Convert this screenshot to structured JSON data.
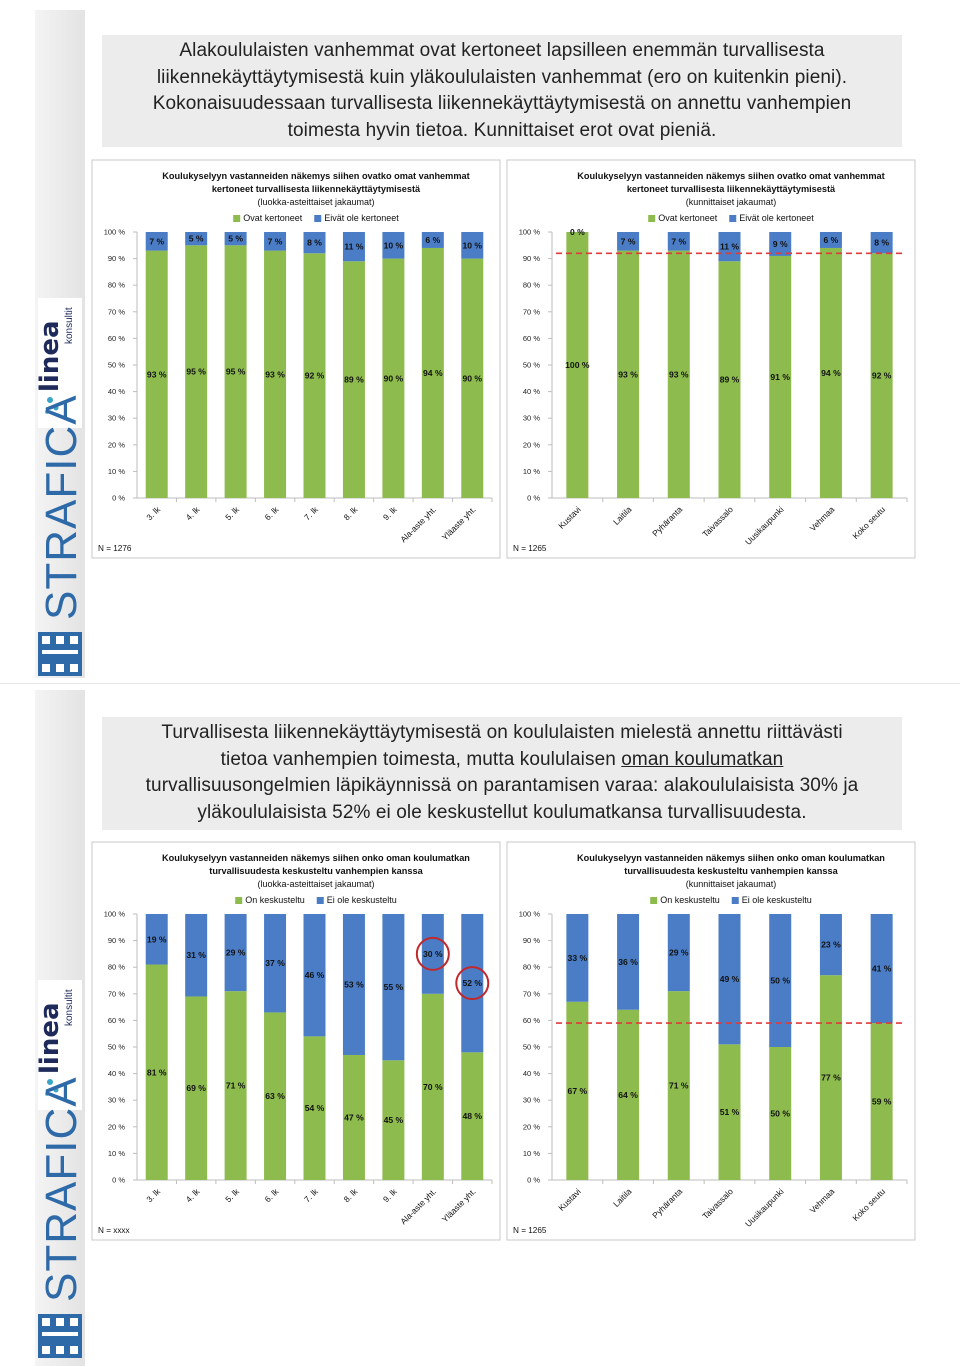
{
  "brand": {
    "name": "STRAFICA",
    "logo_word": "linea",
    "logo_sub": "konsultit"
  },
  "slides": [
    {
      "heading": [
        [
          {
            "text": "Alakoululaisten vanhemmat ovat kertoneet lapsilleen enemmän turvallisesta"
          }
        ],
        [
          {
            "text": "liikennekäyttäytymisestä kuin yläkoululaisten vanhemmat (ero on kuitenkin pieni)."
          }
        ],
        [
          {
            "text": "Kokonaisuudessaan turvallisesta liikennekäyttäytymisestä on annettu vanhempien"
          }
        ],
        [
          {
            "text": "toimesta hyvin tietoa. Kunnittaiset erot ovat pieniä."
          }
        ]
      ]
    },
    {
      "heading": [
        [
          {
            "text": "Turvallisesta liikennekäyttäytymisestä on koululaisten mielestä annettu riittävästi"
          }
        ],
        [
          {
            "text": "tietoa vanhempien toimesta, mutta koululaisen"
          },
          {
            "text": "oman koulumatkan",
            "underline": true
          }
        ],
        [
          {
            "text": "turvallisuusongelmien läpikäynnissä on parantamisen varaa: alakoululaisista 30% ja"
          }
        ],
        [
          {
            "text": "yläkoululaisista 52% ei ole keskustellut koulumatkansa turvallisuudesta."
          }
        ]
      ]
    }
  ],
  "chart_data": [
    {
      "type": "stacked_bar",
      "title": [
        "Koulukyselyyn vastanneiden näkemys siihen ovatko omat vanhemmat",
        "kertoneet turvallisesta liikennekäyttäytymisestä"
      ],
      "subtitle": "(luokka-asteittaiset jakaumat)",
      "note": "N = 1276",
      "categories": [
        "3. lk",
        "4. lk",
        "5. lk",
        "6. lk",
        "7. lk",
        "8. lk",
        "9. lk",
        "Ala-aste yht.",
        "Yläaste yht."
      ],
      "series": [
        {
          "name": "Ovat kertoneet",
          "color": "#8dbb4e",
          "values": [
            93,
            95,
            95,
            93,
            92,
            89,
            90,
            94,
            90
          ],
          "value_labels": [
            "93 %",
            "95 %",
            "95 %",
            "93 %",
            "92 %",
            "89 %",
            "90 %",
            "94 %",
            "90 %"
          ]
        },
        {
          "name": "Eivät ole kertoneet",
          "color": "#4a7dc6",
          "values": [
            7,
            5,
            5,
            7,
            8,
            11,
            10,
            6,
            10
          ],
          "value_labels": [
            "7 %",
            "5 %",
            "5 %",
            "7 %",
            "8 %",
            "11 %",
            "10 %",
            "6 %",
            "10 %"
          ]
        }
      ],
      "ylim": [
        0,
        100
      ],
      "yticks": [
        {
          "value": 0,
          "label": "0 %"
        },
        {
          "value": 10,
          "label": "10 %"
        },
        {
          "value": 20,
          "label": "20 %"
        },
        {
          "value": 30,
          "label": "30 %"
        },
        {
          "value": 40,
          "label": "40 %"
        },
        {
          "value": 50,
          "label": "50 %"
        },
        {
          "value": 60,
          "label": "60 %"
        },
        {
          "value": 70,
          "label": "70 %"
        },
        {
          "value": 80,
          "label": "80 %"
        },
        {
          "value": 90,
          "label": "90 %"
        },
        {
          "value": 100,
          "label": "100 %"
        }
      ],
      "grid": false
    },
    {
      "type": "stacked_bar",
      "title": [
        "Koulukyselyyn vastanneiden näkemys siihen ovatko omat vanhemmat",
        "kertoneet turvallisesta liikennekäyttäytymisestä"
      ],
      "subtitle": "(kunnittaiset jakaumat)",
      "note": "N = 1265",
      "categories": [
        "Kustavi",
        "Laitila",
        "Pyhäranta",
        "Taivassalo",
        "Uusikaupunki",
        "Vehmaa",
        "Koko seutu"
      ],
      "series": [
        {
          "name": "Ovat kertoneet",
          "color": "#8dbb4e",
          "values": [
            100,
            93,
            93,
            89,
            91,
            94,
            92
          ],
          "value_labels": [
            "100 %",
            "93 %",
            "93 %",
            "89 %",
            "91 %",
            "94 %",
            "92 %"
          ]
        },
        {
          "name": "Eivät ole kertoneet",
          "color": "#4a7dc6",
          "values": [
            0,
            7,
            7,
            11,
            9,
            6,
            8
          ],
          "value_labels": [
            "0 %",
            "7 %",
            "7 %",
            "11 %",
            "9 %",
            "6 %",
            "8 %"
          ]
        }
      ],
      "ylim": [
        0,
        100
      ],
      "yticks": [
        {
          "value": 0,
          "label": "0 %"
        },
        {
          "value": 10,
          "label": "10 %"
        },
        {
          "value": 20,
          "label": "20 %"
        },
        {
          "value": 30,
          "label": "30 %"
        },
        {
          "value": 40,
          "label": "40 %"
        },
        {
          "value": 50,
          "label": "50 %"
        },
        {
          "value": 60,
          "label": "60 %"
        },
        {
          "value": 70,
          "label": "70 %"
        },
        {
          "value": 80,
          "label": "80 %"
        },
        {
          "value": 90,
          "label": "90 %"
        },
        {
          "value": 100,
          "label": "100 %"
        }
      ],
      "grid": false,
      "reference_line": {
        "value": 92,
        "color": "#e03a3a"
      }
    },
    {
      "type": "stacked_bar",
      "title": [
        "Koulukyselyyn vastanneiden näkemys siihen onko oman koulumatkan",
        "turvallisuudesta keskusteltu vanhempien kanssa"
      ],
      "subtitle": "(luokka-asteittaiset jakaumat)",
      "note": "N = xxxx",
      "categories": [
        "3. lk",
        "4. lk",
        "5. lk",
        "6. lk",
        "7. lk",
        "8. lk",
        "9. lk",
        "Ala-aste yht.",
        "Yläaste yht."
      ],
      "series": [
        {
          "name": "On keskusteltu",
          "color": "#8dbb4e",
          "values": [
            81,
            69,
            71,
            63,
            54,
            47,
            45,
            70,
            48
          ],
          "value_labels": [
            "81 %",
            "69 %",
            "71 %",
            "63 %",
            "54 %",
            "47 %",
            "45 %",
            "70 %",
            "48 %"
          ]
        },
        {
          "name": "Ei ole keskusteltu",
          "color": "#4a7dc6",
          "values": [
            19,
            31,
            29,
            37,
            46,
            53,
            55,
            30,
            52
          ],
          "value_labels": [
            "19 %",
            "31 %",
            "29 %",
            "37 %",
            "46 %",
            "53 %",
            "55 %",
            "30 %",
            "52 %"
          ]
        }
      ],
      "ylim": [
        0,
        100
      ],
      "yticks": [
        {
          "value": 0,
          "label": "0 %"
        },
        {
          "value": 10,
          "label": "10 %"
        },
        {
          "value": 20,
          "label": "20 %"
        },
        {
          "value": 30,
          "label": "30 %"
        },
        {
          "value": 40,
          "label": "40 %"
        },
        {
          "value": 50,
          "label": "50 %"
        },
        {
          "value": 60,
          "label": "60 %"
        },
        {
          "value": 70,
          "label": "70 %"
        },
        {
          "value": 80,
          "label": "80 %"
        },
        {
          "value": 90,
          "label": "90 %"
        },
        {
          "value": 100,
          "label": "100 %"
        }
      ],
      "grid": false,
      "highlight": [
        7,
        8
      ],
      "highlight_color": "#c0282e"
    },
    {
      "type": "stacked_bar",
      "title": [
        "Koulukyselyyn vastanneiden näkemys siihen onko oman koulumatkan",
        "turvallisuudesta keskusteltu vanhempien kanssa"
      ],
      "subtitle": "(kunnittaiset jakaumat)",
      "note": "N = 1265",
      "categories": [
        "Kustavi",
        "Laitila",
        "Pyhäranta",
        "Taivassalo",
        "Uusikaupunki",
        "Vehmaa",
        "Koko seutu"
      ],
      "series": [
        {
          "name": "On keskusteltu",
          "color": "#8dbb4e",
          "values": [
            67,
            64,
            71,
            51,
            50,
            77,
            59
          ],
          "value_labels": [
            "67 %",
            "64 %",
            "71 %",
            "51 %",
            "50 %",
            "77 %",
            "59 %"
          ]
        },
        {
          "name": "Ei ole keskusteltu",
          "color": "#4a7dc6",
          "values": [
            33,
            36,
            29,
            49,
            50,
            23,
            41
          ],
          "value_labels": [
            "33 %",
            "36 %",
            "29 %",
            "49 %",
            "50 %",
            "23 %",
            "41 %"
          ]
        }
      ],
      "ylim": [
        0,
        100
      ],
      "yticks": [
        {
          "value": 0,
          "label": "0 %"
        },
        {
          "value": 10,
          "label": "10 %"
        },
        {
          "value": 20,
          "label": "20 %"
        },
        {
          "value": 30,
          "label": "30 %"
        },
        {
          "value": 40,
          "label": "40 %"
        },
        {
          "value": 50,
          "label": "50 %"
        },
        {
          "value": 60,
          "label": "60 %"
        },
        {
          "value": 70,
          "label": "70 %"
        },
        {
          "value": 80,
          "label": "80 %"
        },
        {
          "value": 90,
          "label": "90 %"
        },
        {
          "value": 100,
          "label": "100 %"
        }
      ],
      "grid": false,
      "reference_line": {
        "value": 59,
        "color": "#e03a3a"
      }
    }
  ]
}
